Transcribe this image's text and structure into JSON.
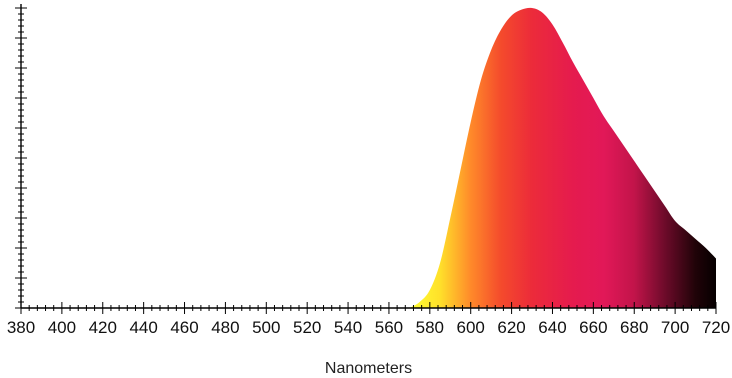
{
  "chart_data": {
    "type": "area",
    "title": "",
    "xlabel": "Nanometers",
    "ylabel": "",
    "xlim": [
      380,
      720
    ],
    "ylim": [
      0,
      1
    ],
    "x_ticks": [
      380,
      400,
      420,
      440,
      460,
      480,
      500,
      520,
      540,
      560,
      580,
      600,
      620,
      640,
      660,
      680,
      700,
      720
    ],
    "x_tick_labels": [
      "380",
      "400",
      "420",
      "440",
      "460",
      "480",
      "500",
      "520",
      "540",
      "560",
      "580",
      "600",
      "620",
      "640",
      "660",
      "680",
      "700",
      "720"
    ],
    "x_minor_step": 4,
    "y_major_step": 0.1,
    "y_minor_step": 0.02,
    "y_tick_labels_shown": false,
    "grid": false,
    "legend": "none",
    "fill": "wavelength-color gradient",
    "series": [
      {
        "x": [
          570,
          575,
          580,
          585,
          590,
          595,
          600,
          605,
          610,
          615,
          620,
          625,
          630,
          635,
          640,
          645,
          650,
          655,
          660,
          665,
          670,
          675,
          680,
          685,
          690,
          695,
          700,
          705,
          710,
          715,
          720
        ],
        "values": [
          0.0,
          0.02,
          0.06,
          0.15,
          0.3,
          0.46,
          0.62,
          0.76,
          0.86,
          0.93,
          0.975,
          0.995,
          1.0,
          0.985,
          0.945,
          0.885,
          0.82,
          0.76,
          0.7,
          0.64,
          0.59,
          0.54,
          0.49,
          0.44,
          0.39,
          0.34,
          0.29,
          0.26,
          0.23,
          0.2,
          0.165
        ]
      }
    ],
    "gradient_stops": [
      {
        "x": 570,
        "color": "#ffff33"
      },
      {
        "x": 585,
        "color": "#ffe02a"
      },
      {
        "x": 600,
        "color": "#ff8a2a"
      },
      {
        "x": 615,
        "color": "#f44a2c"
      },
      {
        "x": 630,
        "color": "#ec2b3a"
      },
      {
        "x": 650,
        "color": "#e51b4e"
      },
      {
        "x": 665,
        "color": "#e21858"
      },
      {
        "x": 680,
        "color": "#c2144a"
      },
      {
        "x": 695,
        "color": "#6d0b2a"
      },
      {
        "x": 710,
        "color": "#200308"
      },
      {
        "x": 720,
        "color": "#050000"
      }
    ]
  }
}
